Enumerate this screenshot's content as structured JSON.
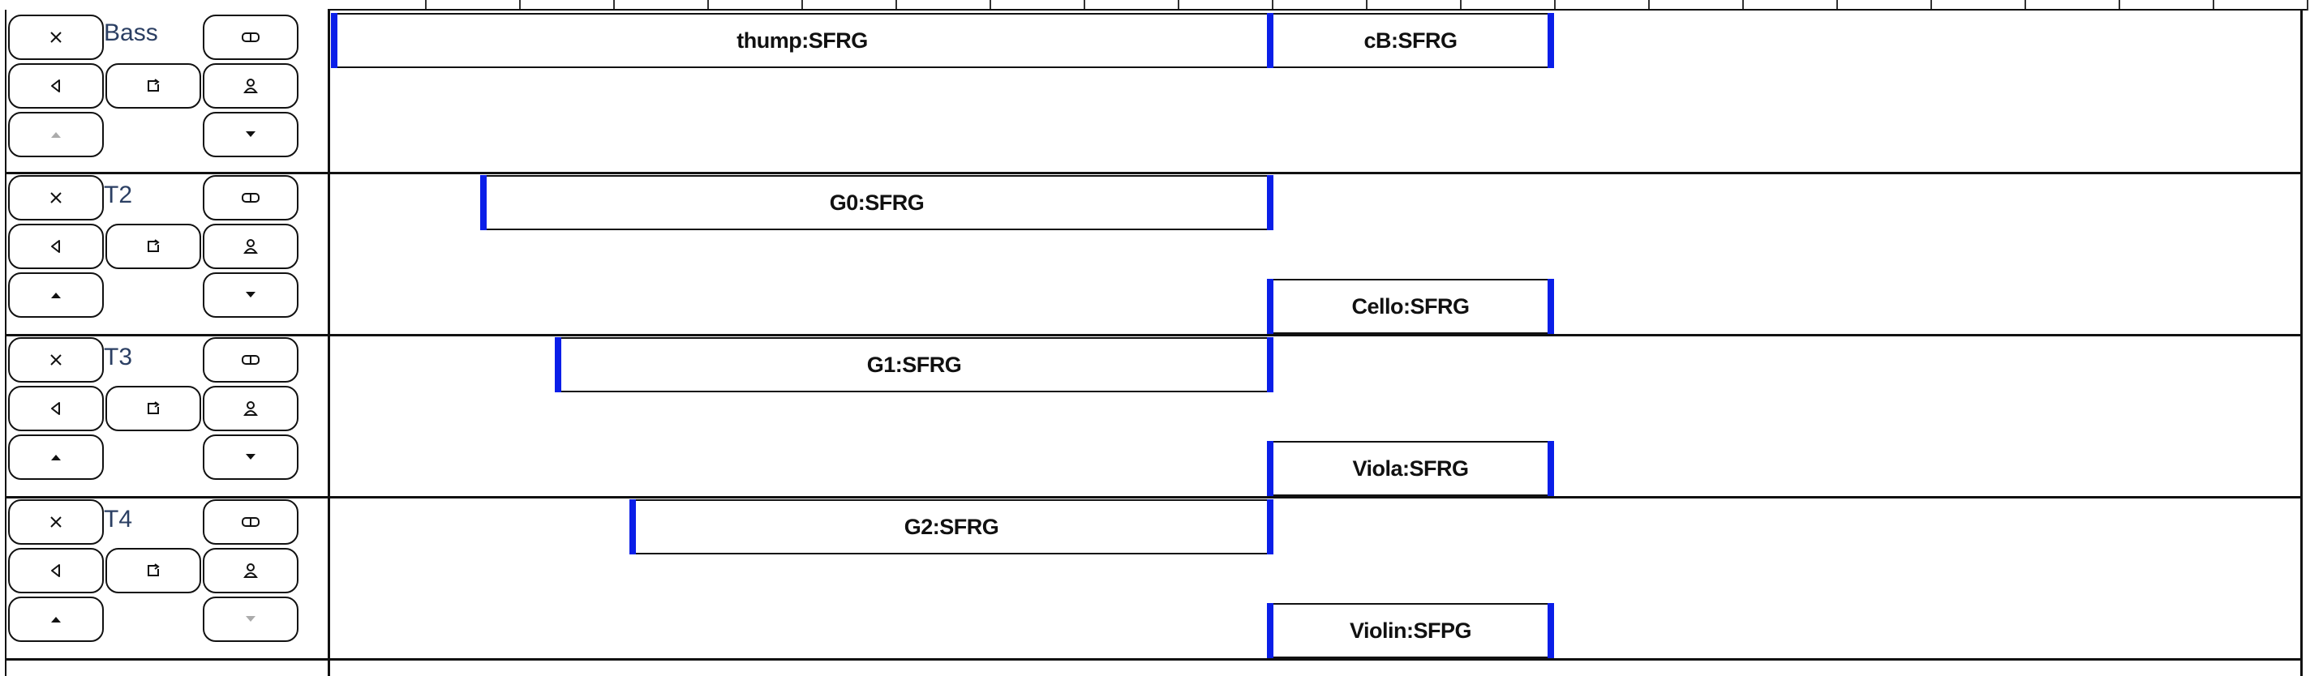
{
  "icons": {
    "close": "close-icon",
    "split": "split-icon",
    "speaker": "speaker-icon",
    "loop": "loop-icon",
    "person": "person-icon",
    "up": "arrow-up-icon",
    "down": "arrow-down-icon"
  },
  "colors": {
    "clip_edge": "#0a1ee8",
    "track_name": "#2b3f63",
    "border": "#111111"
  },
  "tracks": [
    {
      "name": "Bass",
      "up_enabled": false,
      "down_enabled": true,
      "clips": [
        {
          "label": "thump:SFRG",
          "lane": "top"
        },
        {
          "label": "cB:SFRG",
          "lane": "top"
        }
      ]
    },
    {
      "name": "T2",
      "up_enabled": true,
      "down_enabled": true,
      "clips": [
        {
          "label": "G0:SFRG",
          "lane": "top"
        },
        {
          "label": "Cello:SFRG",
          "lane": "bottom"
        }
      ]
    },
    {
      "name": "T3",
      "up_enabled": true,
      "down_enabled": true,
      "clips": [
        {
          "label": "G1:SFRG",
          "lane": "top"
        },
        {
          "label": "Viola:SFRG",
          "lane": "bottom"
        }
      ]
    },
    {
      "name": "T4",
      "up_enabled": true,
      "down_enabled": false,
      "clips": [
        {
          "label": "G2:SFRG",
          "lane": "top"
        },
        {
          "label": "Violin:SFPG",
          "lane": "bottom"
        }
      ]
    }
  ]
}
